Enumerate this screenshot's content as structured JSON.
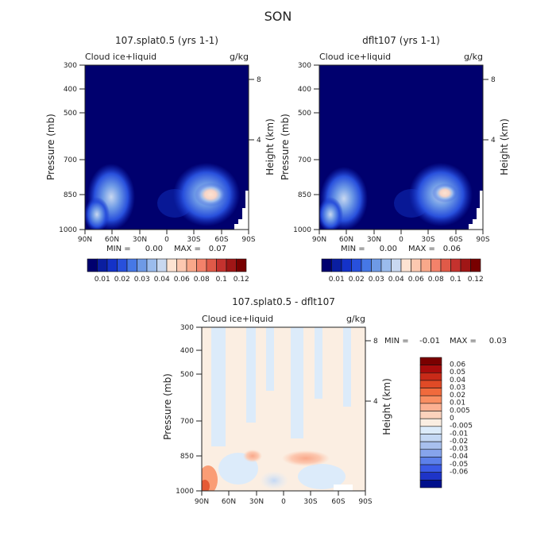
{
  "figure": {
    "title": "SON"
  },
  "chart_data": [
    {
      "type": "heatmap",
      "title": "107.splat0.5 (yrs 1-1)",
      "subtitle_left": "Cloud ice+liquid",
      "subtitle_right": "g/kg",
      "xlabel": "",
      "ylabel": "Pressure (mb)",
      "y2label": "Height (km)",
      "xticks": [
        "90N",
        "60N",
        "30N",
        "0",
        "30S",
        "60S",
        "90S"
      ],
      "yticks": [
        "300",
        "400",
        "500",
        "700",
        "850",
        "1000"
      ],
      "y2ticks": [
        "8",
        "4"
      ],
      "stats": {
        "min_label": "MIN =",
        "min": "0.00",
        "max_label": "MAX =",
        "max": "0.07"
      },
      "colorbar": {
        "colors": [
          "#00006e",
          "#0a1ea0",
          "#1432c8",
          "#2850dc",
          "#4678e6",
          "#6e9ae6",
          "#9bbced",
          "#c8d8f0",
          "#fde3d2",
          "#fcc8b0",
          "#f9a88a",
          "#f3826a",
          "#e05a48",
          "#c4322e",
          "#a01616",
          "#780000"
        ],
        "labels": [
          "0.01",
          "0.02",
          "0.03",
          "0.04",
          "0.06",
          "0.08",
          "0.1",
          "0.12"
        ]
      }
    },
    {
      "type": "heatmap",
      "title": "dflt107 (yrs 1-1)",
      "subtitle_left": "Cloud ice+liquid",
      "subtitle_right": "g/kg",
      "xlabel": "",
      "ylabel": "Pressure (mb)",
      "y2label": "Height (km)",
      "xticks": [
        "90N",
        "60N",
        "30N",
        "0",
        "30S",
        "60S",
        "90S"
      ],
      "yticks": [
        "300",
        "400",
        "500",
        "700",
        "850",
        "1000"
      ],
      "y2ticks": [
        "8",
        "4"
      ],
      "stats": {
        "min_label": "MIN =",
        "min": "0.00",
        "max_label": "MAX =",
        "max": "0.06"
      },
      "colorbar": {
        "colors": [
          "#00006e",
          "#0a1ea0",
          "#1432c8",
          "#2850dc",
          "#4678e6",
          "#6e9ae6",
          "#9bbced",
          "#c8d8f0",
          "#fde3d2",
          "#fcc8b0",
          "#f9a88a",
          "#f3826a",
          "#e05a48",
          "#c4322e",
          "#a01616",
          "#780000"
        ],
        "labels": [
          "0.01",
          "0.02",
          "0.03",
          "0.04",
          "0.06",
          "0.08",
          "0.1",
          "0.12"
        ]
      }
    },
    {
      "type": "heatmap",
      "title": "107.splat0.5 - dflt107",
      "subtitle_left": "Cloud ice+liquid",
      "subtitle_right": "g/kg",
      "xlabel": "",
      "ylabel": "Pressure (mb)",
      "y2label": "Height (km)",
      "xticks": [
        "90N",
        "60N",
        "30N",
        "0",
        "30S",
        "60S",
        "90S"
      ],
      "yticks": [
        "300",
        "400",
        "500",
        "700",
        "850",
        "1000"
      ],
      "y2ticks": [
        "8",
        "4"
      ],
      "stats": {
        "min_label": "MIN =",
        "min": "-0.01",
        "max_label": "MAX =",
        "max": "0.03"
      },
      "colorbar": {
        "colors": [
          "#7a0000",
          "#a80c0c",
          "#c82a18",
          "#e04a26",
          "#f06a3c",
          "#f98e62",
          "#fcb092",
          "#fcd2bc",
          "#fbeee2",
          "#dcebfa",
          "#c4d8f4",
          "#a8c0ee",
          "#86a4ec",
          "#5c80ea",
          "#3a5ae6",
          "#1e34c8",
          "#00108c"
        ],
        "labels": [
          "0.06",
          "0.05",
          "0.04",
          "0.03",
          "0.02",
          "0.01",
          "0.005",
          "0",
          "-0.005",
          "-0.01",
          "-0.02",
          "-0.03",
          "-0.04",
          "-0.05",
          "-0.06"
        ]
      }
    }
  ]
}
